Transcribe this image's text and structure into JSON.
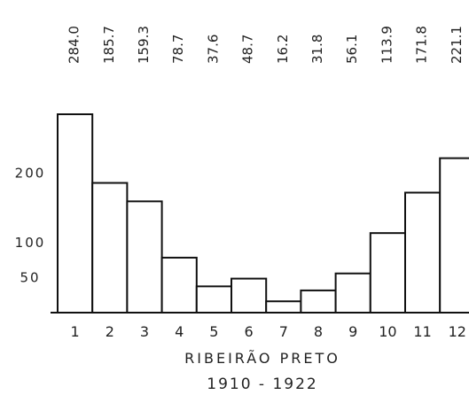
{
  "chart_data": {
    "type": "bar",
    "categories": [
      "1",
      "2",
      "3",
      "4",
      "5",
      "6",
      "7",
      "8",
      "9",
      "10",
      "11",
      "12"
    ],
    "values": [
      284.0,
      185.7,
      159.3,
      78.7,
      37.6,
      48.7,
      16.2,
      31.8,
      56.1,
      113.9,
      171.8,
      221.1
    ],
    "value_labels": [
      "284.0",
      "185.7",
      "159.3",
      "78.7",
      "37.6",
      "48.7",
      "16.2",
      "31.8",
      "56.1",
      "113.9",
      "171.8",
      "221.1"
    ],
    "y_ticks": [
      {
        "value": 50,
        "label": "50"
      },
      {
        "value": 100,
        "label": "100"
      },
      {
        "value": 200,
        "label": "200"
      }
    ],
    "ylim": [
      0,
      284
    ],
    "grid": false,
    "title": "RIBEIRÃO PRETO",
    "subtitle": "1910 - 1922",
    "xlabel": "",
    "ylabel": "",
    "colors": {
      "bar_fill": "#ffffff",
      "bar_stroke": "#111111",
      "text": "#222222"
    }
  }
}
